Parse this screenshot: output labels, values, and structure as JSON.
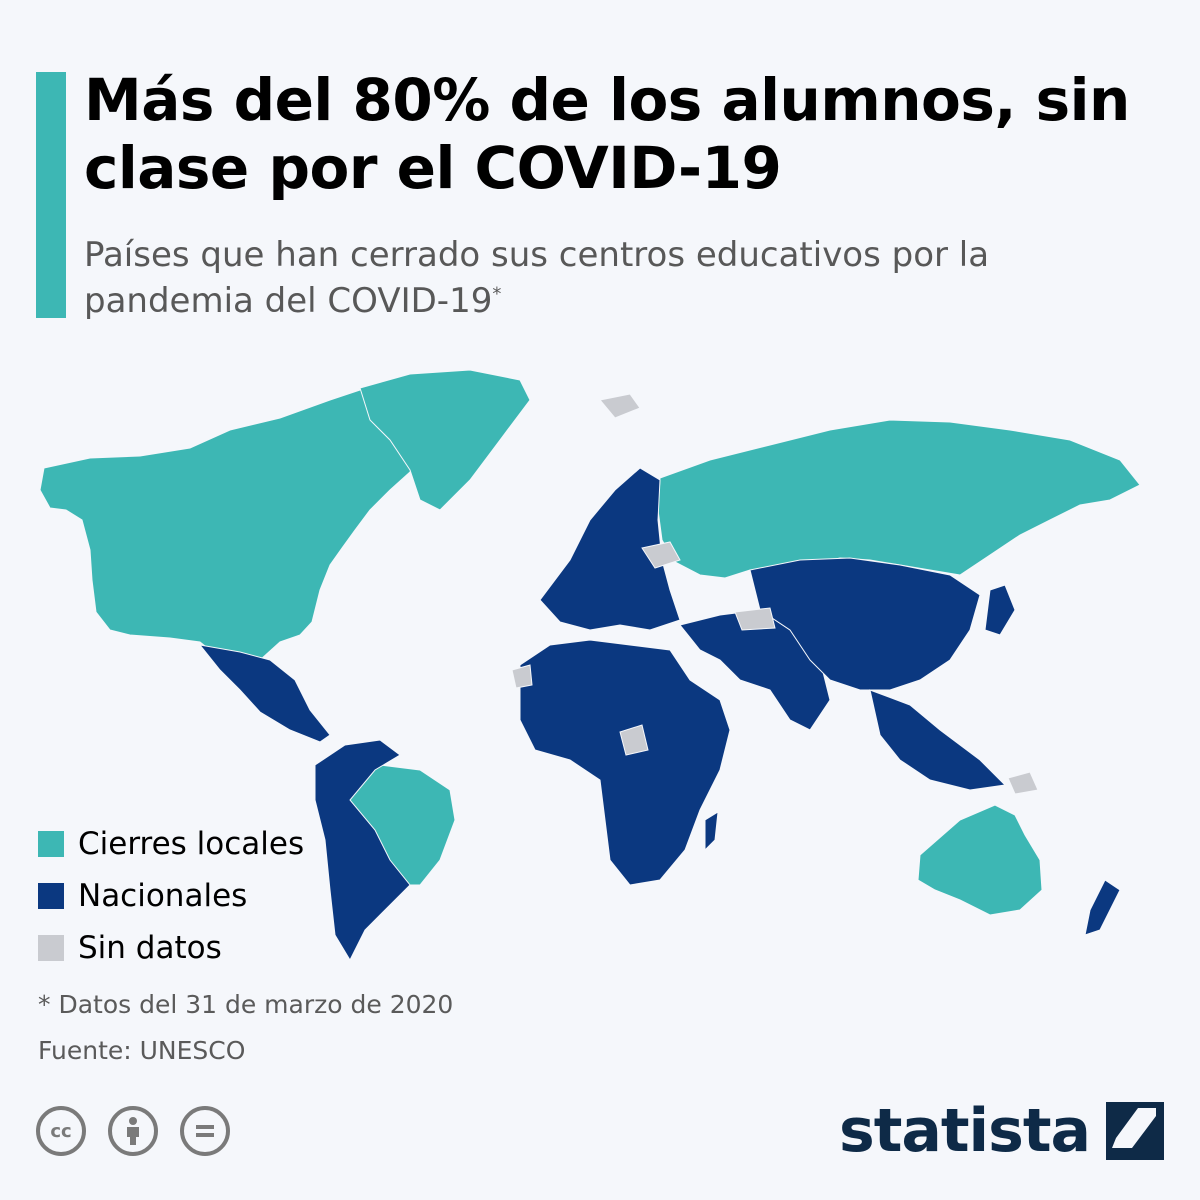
{
  "header": {
    "title": "Más del 80% de los alumnos, sin clase por el COVID-19",
    "subtitle": "Países que han cerrado sus centros educativos por la pandemia del COVID-19",
    "subtitle_mark": "*"
  },
  "colors": {
    "accent": "#3db7b4",
    "local": "#3db7b4",
    "national": "#0b3880",
    "no_data": "#c9cbd0",
    "background": "#f5f7fb"
  },
  "legend": [
    {
      "label": "Cierres locales",
      "color": "#3db7b4"
    },
    {
      "label": "Nacionales",
      "color": "#0b3880"
    },
    {
      "label": "Sin datos",
      "color": "#c9cbd0"
    }
  ],
  "footer": {
    "note": "* Datos del 31 de marzo de 2020",
    "source": "Fuente: UNESCO",
    "cc_icons": [
      "cc-icon",
      "attribution-icon",
      "no-derivatives-icon"
    ],
    "brand": "statista"
  }
}
